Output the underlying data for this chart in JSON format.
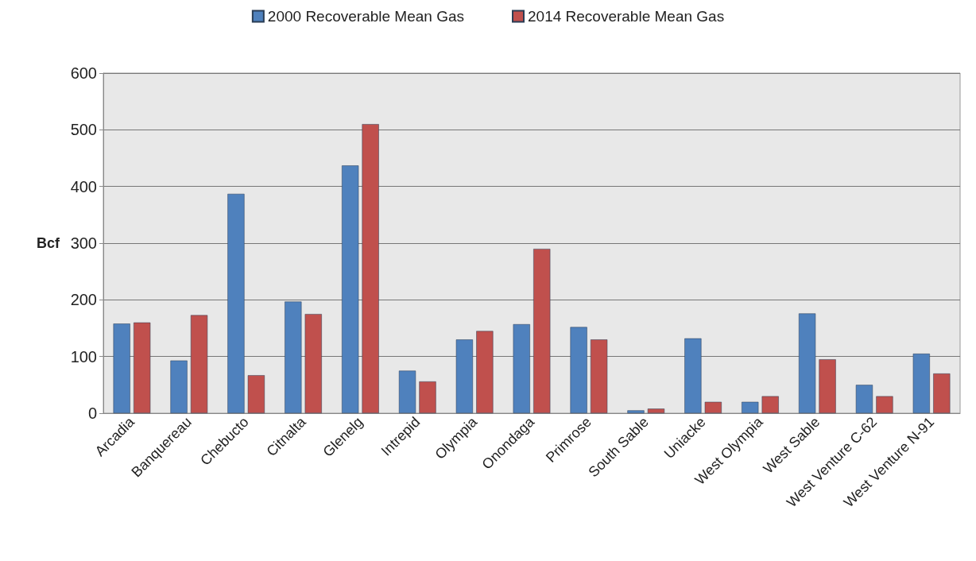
{
  "chart_data": {
    "type": "bar",
    "ylabel": "Bcf",
    "categories": [
      "Arcadia",
      "Banquereau",
      "Chebucto",
      "Citnalta",
      "Glenelg",
      "Intrepid",
      "Olympia",
      "Onondaga",
      "Primrose",
      "South Sable",
      "Uniacke",
      "West Olympia",
      "West Sable",
      "West Venture C-62",
      "West Venture N-91"
    ],
    "series": [
      {
        "name": "2000 Recoverable Mean Gas",
        "color": "#4f81bd",
        "values": [
          158,
          93,
          387,
          197,
          437,
          75,
          130,
          157,
          152,
          5,
          132,
          20,
          176,
          50,
          105
        ]
      },
      {
        "name": "2014 Recoverable Mean Gas",
        "color": "#c0504d",
        "values": [
          160,
          173,
          67,
          175,
          510,
          56,
          145,
          290,
          130,
          8,
          20,
          30,
          95,
          30,
          70
        ]
      }
    ],
    "ylim": [
      0,
      600
    ],
    "yticks": [
      0,
      100,
      200,
      300,
      400,
      500,
      600
    ],
    "grid": "y",
    "legend": "top"
  }
}
